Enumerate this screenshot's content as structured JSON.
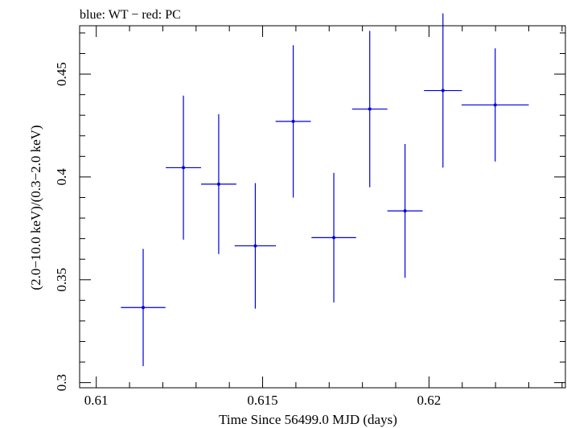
{
  "chart_data": {
    "type": "scatter",
    "title": "blue: WT − red: PC",
    "xlabel": "Time Since 56499.0 MJD (days)",
    "ylabel": "(2.0−10.0 keV)/(0.3−2.0 keV)",
    "xlim": [
      0.6095,
      0.6241
    ],
    "ylim": [
      0.2975,
      0.4735
    ],
    "x_major_ticks": [
      0.61,
      0.615,
      0.62
    ],
    "x_tick_labels": [
      "0.61",
      "0.615",
      "0.62"
    ],
    "y_major_ticks": [
      0.3,
      0.35,
      0.4,
      0.45
    ],
    "y_tick_labels": [
      "0.3",
      "0.35",
      "0.4",
      "0.45"
    ],
    "grid": false,
    "series": [
      {
        "color": "#0000e0",
        "points": [
          {
            "x": 0.61141,
            "xerr": 0.00067,
            "y": 0.3365,
            "yerr": 0.0285
          },
          {
            "x": 0.61262,
            "xerr": 0.00053,
            "y": 0.4045,
            "yerr": 0.035
          },
          {
            "x": 0.61368,
            "xerr": 0.00053,
            "y": 0.3965,
            "yerr": 0.034
          },
          {
            "x": 0.61478,
            "xerr": 0.00062,
            "y": 0.3665,
            "yerr": 0.0305
          },
          {
            "x": 0.61592,
            "xerr": 0.00053,
            "y": 0.427,
            "yerr": 0.037
          },
          {
            "x": 0.61714,
            "xerr": 0.00067,
            "y": 0.3705,
            "yerr": 0.0315
          },
          {
            "x": 0.61822,
            "xerr": 0.00053,
            "y": 0.433,
            "yerr": 0.038
          },
          {
            "x": 0.61928,
            "xerr": 0.00053,
            "y": 0.3835,
            "yerr": 0.0325
          },
          {
            "x": 0.62042,
            "xerr": 0.00057,
            "y": 0.442,
            "yerr": 0.0375
          },
          {
            "x": 0.62199,
            "xerr": 0.00101,
            "y": 0.435,
            "yerr": 0.0275
          }
        ]
      }
    ]
  }
}
